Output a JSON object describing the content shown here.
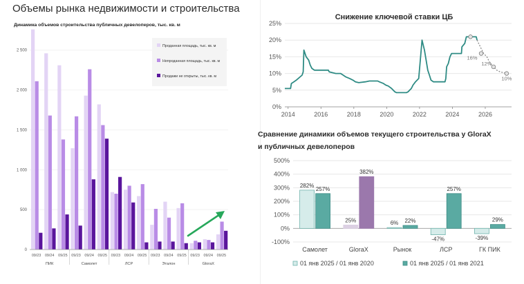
{
  "page_title": "Объемы рынка недвижимости и строительства",
  "chart_data": [
    {
      "type": "bar",
      "title": "Динамика объемов строительства публичных девелоперов, тыс. кв. м",
      "ylim": [
        0,
        2800
      ],
      "yticks": [
        "0",
        "500",
        "1 000",
        "1 500",
        "2 000",
        "2 500"
      ],
      "ytick_values": [
        0,
        500,
        1000,
        1500,
        2000,
        2500
      ],
      "periods": [
        "09/23",
        "09/24",
        "09/25"
      ],
      "groups": [
        "ПИК",
        "Самолет",
        "ЛСР",
        "Эталон",
        "GloraX"
      ],
      "series": [
        {
          "name": "Проданная площадь, тыс. кв. м",
          "color": "#e3d4f5",
          "values": [
            [
              2760,
              2460,
              2310
            ],
            [
              1270,
              1930,
              1820
            ],
            [
              720,
              750,
              670
            ],
            [
              310,
              600,
              520
            ],
            [
              80,
              130,
              190
            ]
          ]
        },
        {
          "name": "Непроданная площадь, тыс. кв. м",
          "color": "#b98ce6",
          "values": [
            [
              2110,
              1680,
              1380
            ],
            [
              1670,
              2260,
              1560
            ],
            [
              700,
              800,
              820
            ],
            [
              510,
              400,
              580
            ],
            [
              110,
              120,
              350
            ]
          ]
        },
        {
          "name": "Продажи не открыты, тыс. кв. м",
          "color": "#5a159c",
          "values": [
            [
              210,
              265,
              440
            ],
            [
              300,
              880,
              1390
            ],
            [
              910,
              590,
              90
            ],
            [
              100,
              100,
              80
            ],
            [
              90,
              90,
              235
            ]
          ]
        }
      ],
      "annotation": "up-arrow-green"
    },
    {
      "type": "line",
      "title": "Снижение ключевой ставки ЦБ",
      "color": "#2e8b84",
      "ylim": [
        0,
        25
      ],
      "yticks": [
        "0%",
        "5%",
        "10%",
        "15%",
        "20%",
        "25%"
      ],
      "ytick_values": [
        0,
        5,
        10,
        15,
        20,
        25
      ],
      "xlim": [
        2013.8,
        2027.6
      ],
      "xticks": [
        "2014",
        "2016",
        "2018",
        "2020",
        "2022",
        "2024",
        "2026"
      ],
      "xtick_values": [
        2014,
        2016,
        2018,
        2020,
        2022,
        2024,
        2026
      ],
      "actual": [
        [
          2013.8,
          5.5
        ],
        [
          2014.15,
          5.5
        ],
        [
          2014.2,
          7
        ],
        [
          2014.35,
          7.5
        ],
        [
          2014.5,
          8
        ],
        [
          2014.85,
          9.5
        ],
        [
          2014.92,
          10.5
        ],
        [
          2014.96,
          17
        ],
        [
          2015.1,
          15
        ],
        [
          2015.25,
          14
        ],
        [
          2015.35,
          12.5
        ],
        [
          2015.45,
          11.5
        ],
        [
          2015.6,
          11
        ],
        [
          2016.45,
          11
        ],
        [
          2016.5,
          10.5
        ],
        [
          2016.9,
          10
        ],
        [
          2017.2,
          10
        ],
        [
          2017.35,
          9.5
        ],
        [
          2017.5,
          9
        ],
        [
          2017.75,
          8.5
        ],
        [
          2017.95,
          8
        ],
        [
          2018.1,
          7.5
        ],
        [
          2018.3,
          7.25
        ],
        [
          2018.7,
          7.5
        ],
        [
          2018.95,
          7.75
        ],
        [
          2019.45,
          7.75
        ],
        [
          2019.55,
          7.5
        ],
        [
          2019.8,
          7
        ],
        [
          2019.95,
          6.5
        ],
        [
          2020.1,
          6.25
        ],
        [
          2020.3,
          5.5
        ],
        [
          2020.5,
          4.5
        ],
        [
          2020.6,
          4.25
        ],
        [
          2021.2,
          4.25
        ],
        [
          2021.3,
          4.5
        ],
        [
          2021.4,
          5
        ],
        [
          2021.5,
          5.5
        ],
        [
          2021.6,
          6.5
        ],
        [
          2021.75,
          7.5
        ],
        [
          2021.95,
          8.5
        ],
        [
          2022.15,
          20
        ],
        [
          2022.3,
          17
        ],
        [
          2022.4,
          14
        ],
        [
          2022.5,
          11
        ],
        [
          2022.6,
          9.5
        ],
        [
          2022.7,
          8
        ],
        [
          2022.85,
          7.5
        ],
        [
          2023.55,
          7.5
        ],
        [
          2023.6,
          8.5
        ],
        [
          2023.65,
          12
        ],
        [
          2023.75,
          13
        ],
        [
          2023.85,
          15
        ],
        [
          2023.95,
          16
        ],
        [
          2024.55,
          16
        ],
        [
          2024.58,
          18
        ],
        [
          2024.75,
          19
        ],
        [
          2024.85,
          21
        ],
        [
          2025.45,
          21
        ],
        [
          2025.5,
          20
        ]
      ],
      "forecast": [
        [
          2025.5,
          20
        ],
        [
          2025.7,
          18
        ],
        [
          2025.9,
          16
        ],
        [
          2026.1,
          15
        ],
        [
          2026.3,
          13
        ],
        [
          2026.5,
          12
        ],
        [
          2026.7,
          11
        ],
        [
          2026.9,
          10.5
        ],
        [
          2027.3,
          10
        ]
      ],
      "forecast_markers": [
        {
          "x": 2025.1,
          "y": 21,
          "label": ""
        },
        {
          "x": 2025.75,
          "y": 16,
          "label": "16%"
        },
        {
          "x": 2026.5,
          "y": 12,
          "label": "12%"
        },
        {
          "x": 2027.3,
          "y": 10,
          "label": "10%"
        }
      ]
    },
    {
      "type": "bar",
      "title_line1": "Сравнение динамики объемов текущего строительства у GloraX",
      "title_line2": "и публичных девелоперов",
      "ylim": [
        -100,
        500
      ],
      "yticks": [
        "-100%",
        "0%",
        "100%",
        "200%",
        "300%",
        "400%",
        "500%"
      ],
      "ytick_values": [
        -100,
        0,
        100,
        200,
        300,
        400,
        500
      ],
      "categories": [
        "Самолет",
        "GloraX",
        "Рынок",
        "ЛСР",
        "ГК ПИК"
      ],
      "series": [
        {
          "name": "01 янв 2025 / 01 янв 2020",
          "values": [
            282,
            25,
            6,
            -47,
            -39
          ],
          "labels": [
            "282%",
            "25%",
            "6%",
            "-47%",
            "-39%"
          ]
        },
        {
          "name": "01 янв 2025 / 01 янв 2021",
          "values": [
            257,
            382,
            22,
            257,
            29
          ],
          "labels": [
            "257%",
            "382%",
            "22%",
            "257%",
            "29%"
          ]
        }
      ],
      "colors": {
        "s1_fill": "#d6ecea",
        "s1_stroke": "#6fb3ac",
        "s2_fill": "#5aaaa2",
        "s2_stroke": "#3e8d86",
        "glorax_s1": "#dcd0e3",
        "glorax_s2": "#9b78ac"
      }
    }
  ]
}
